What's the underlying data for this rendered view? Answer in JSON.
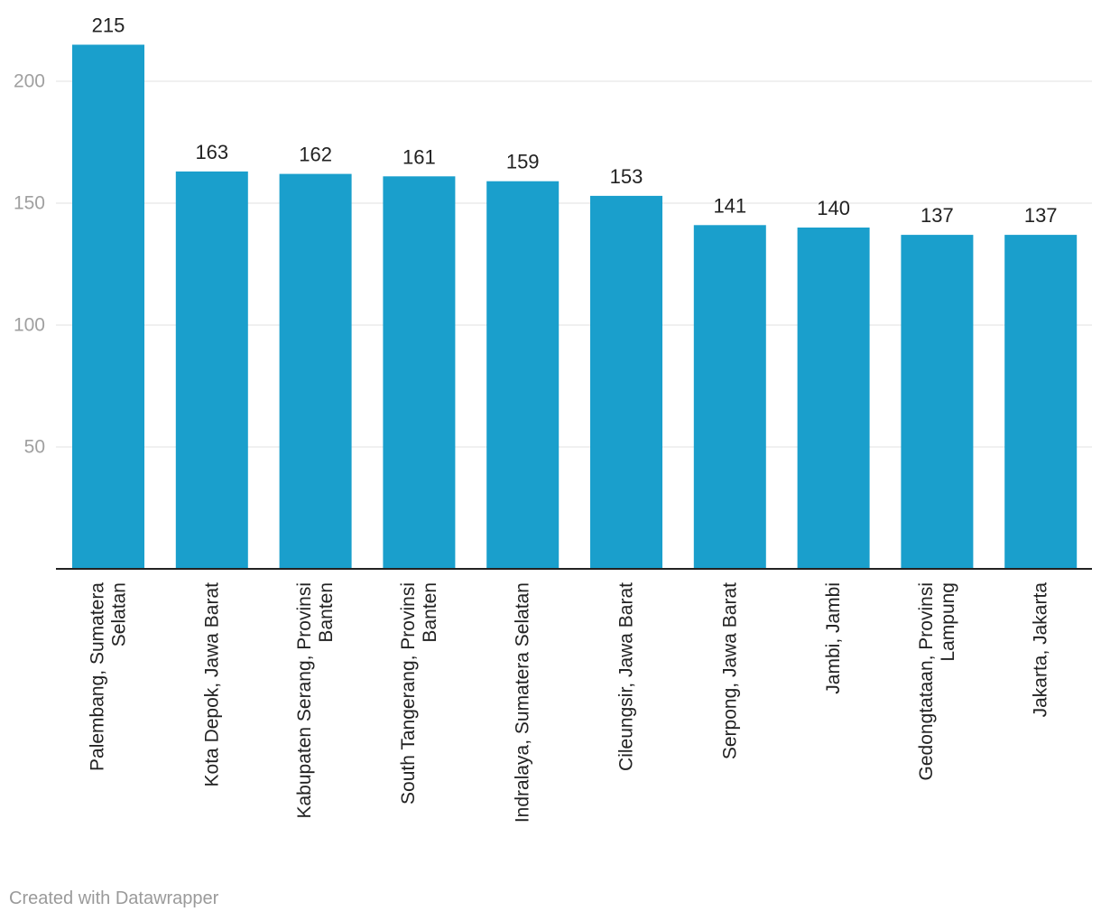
{
  "chart_data": {
    "type": "bar",
    "title": "",
    "xlabel": "",
    "ylabel": "",
    "categories": [
      [
        "Palembang, Sumatera",
        "Selatan"
      ],
      [
        "Kota Depok, Jawa Barat"
      ],
      [
        "Kabupaten Serang, Provinsi",
        "Banten"
      ],
      [
        "South Tangerang, Provinsi",
        "Banten"
      ],
      [
        "Indralaya, Sumatera Selatan"
      ],
      [
        "Cileungsir, Jawa Barat"
      ],
      [
        "Serpong, Jawa Barat"
      ],
      [
        "Jambi, Jambi"
      ],
      [
        "Gedongtataan, Provinsi",
        "Lampung"
      ],
      [
        "Jakarta, Jakarta"
      ]
    ],
    "values": [
      215,
      163,
      162,
      161,
      159,
      153,
      141,
      140,
      137,
      137
    ],
    "ylim": [
      0,
      215
    ],
    "yticks": [
      50,
      100,
      150,
      200
    ],
    "grid": true,
    "bar_color": "#1a9fcc"
  },
  "footer": {
    "credit": "Created with Datawrapper"
  }
}
